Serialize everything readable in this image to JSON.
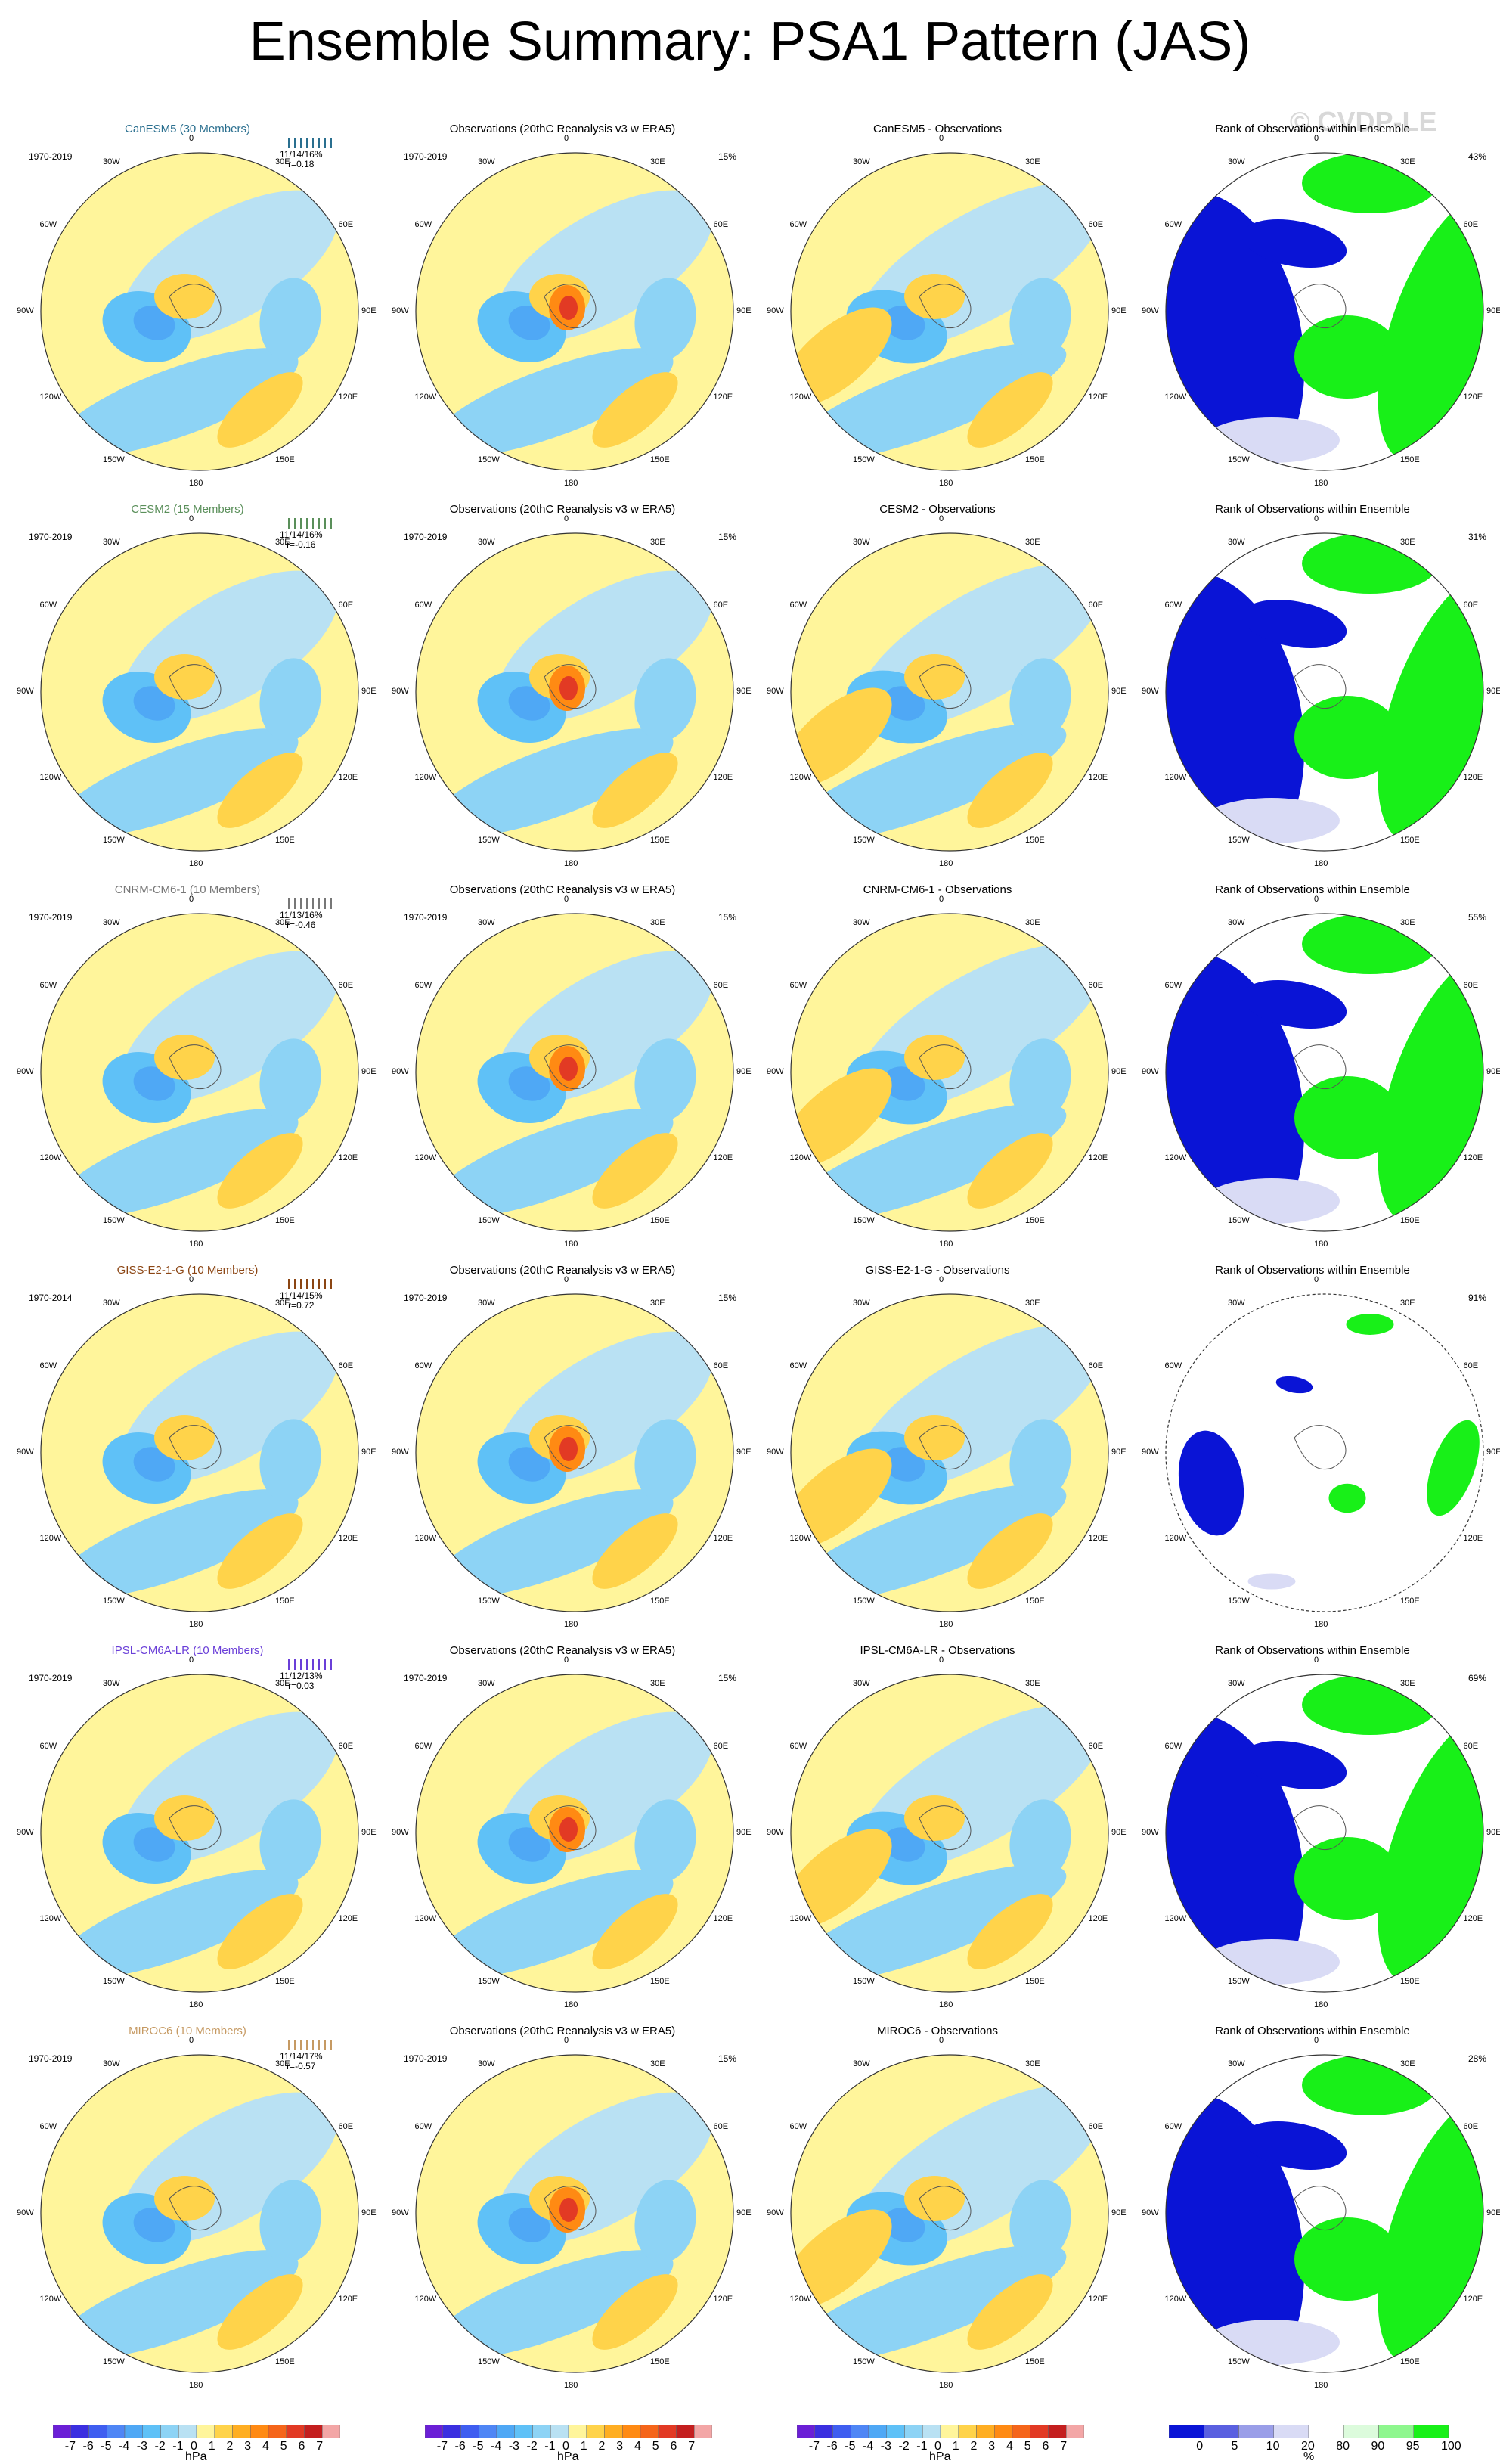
{
  "title": "Ensemble Summary: PSA1 Pattern (JAS)",
  "watermark": "© CVDP-LE",
  "lon_labels": [
    "0",
    "30E",
    "60E",
    "90E",
    "120E",
    "150E",
    "180",
    "150W",
    "120W",
    "90W",
    "60W",
    "30W"
  ],
  "rows": [
    {
      "model": "CanESM5 (30 Members)",
      "model_color": "#2a6f8f",
      "period": "1970-2019",
      "stat1": "11/14/16%",
      "stat2": "r=0.18",
      "obs_period": "1970-2019",
      "obs_pct": "15%",
      "diff_title": "CanESM5 - Observations",
      "rank_title": "Rank of Observations within Ensemble",
      "rank_pct": "43%"
    },
    {
      "model": "CESM2 (15 Members)",
      "model_color": "#5a8f5a",
      "period": "1970-2019",
      "stat1": "11/14/16%",
      "stat2": "r=-0.16",
      "obs_period": "1970-2019",
      "obs_pct": "15%",
      "diff_title": "CESM2 - Observations",
      "rank_title": "Rank of Observations within Ensemble",
      "rank_pct": "31%"
    },
    {
      "model": "CNRM-CM6-1 (10 Members)",
      "model_color": "#777777",
      "period": "1970-2019",
      "stat1": "11/13/16%",
      "stat2": "r=-0.46",
      "obs_period": "1970-2019",
      "obs_pct": "15%",
      "diff_title": "CNRM-CM6-1 - Observations",
      "rank_title": "Rank of Observations within Ensemble",
      "rank_pct": "55%"
    },
    {
      "model": "GISS-E2-1-G (10 Members)",
      "model_color": "#8b4513",
      "period": "1970-2014",
      "stat1": "11/14/15%",
      "stat2": "r=0.72",
      "obs_period": "1970-2019",
      "obs_pct": "15%",
      "diff_title": "GISS-E2-1-G - Observations",
      "rank_title": "Rank of Observations within Ensemble",
      "rank_pct": "91%"
    },
    {
      "model": "IPSL-CM6A-LR (10 Members)",
      "model_color": "#6a3fd8",
      "period": "1970-2019",
      "stat1": "11/12/13%",
      "stat2": "r=0.03",
      "obs_period": "1970-2019",
      "obs_pct": "15%",
      "diff_title": "IPSL-CM6A-LR - Observations",
      "rank_title": "Rank of Observations within Ensemble",
      "rank_pct": "69%"
    },
    {
      "model": "MIROC6 (10 Members)",
      "model_color": "#c69a63",
      "period": "1970-2019",
      "stat1": "11/14/17%",
      "stat2": "r=-0.57",
      "obs_period": "1970-2019",
      "obs_pct": "15%",
      "diff_title": "MIROC6 - Observations",
      "rank_title": "Rank of Observations within Ensemble",
      "rank_pct": "28%"
    }
  ],
  "obs_title": "Observations (20thC Reanalysis v3 w ERA5)",
  "hpa_colorbar": {
    "labels": [
      "-7",
      "-6",
      "-5",
      "-4",
      "-3",
      "-2",
      "-1",
      "0",
      "1",
      "2",
      "3",
      "4",
      "5",
      "6",
      "7"
    ],
    "colors": [
      "#6b1fd6",
      "#3b2fe0",
      "#3f5ef0",
      "#4f86f5",
      "#4fa8f5",
      "#5fc1f7",
      "#8dd3f5",
      "#b9e1f3",
      "#fff59b",
      "#ffd34a",
      "#ffae22",
      "#ff8a13",
      "#f5651a",
      "#e23a24",
      "#c41f1f",
      "#f3a6a6"
    ],
    "unit": "hPa"
  },
  "rank_colorbar": {
    "labels": [
      "0",
      "5",
      "10",
      "20",
      "80",
      "90",
      "95",
      "100"
    ],
    "colors": [
      "#0a14d6",
      "#5a60e0",
      "#9a9ee8",
      "#d9dbf5",
      "#ffffff",
      "#dcfbdc",
      "#8ef78e",
      "#18f018"
    ],
    "unit": "%"
  }
}
